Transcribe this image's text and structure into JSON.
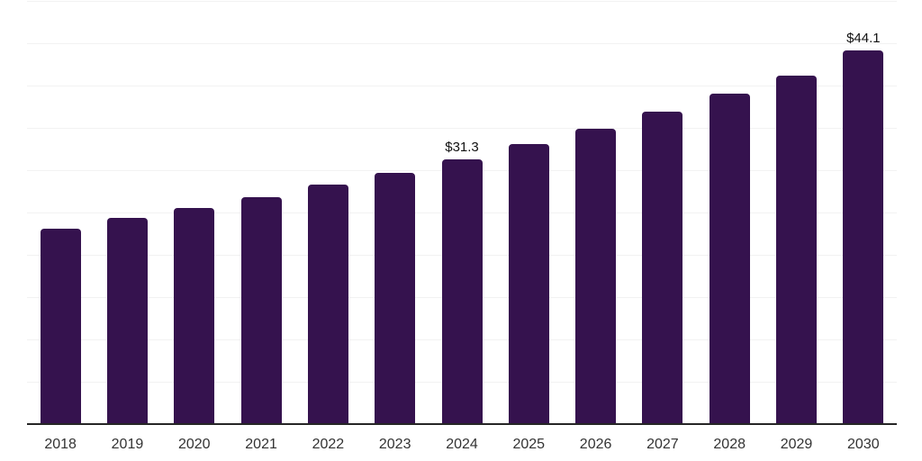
{
  "chart_data": {
    "type": "bar",
    "title": "",
    "xlabel": "",
    "ylabel": "",
    "categories": [
      "2018",
      "2019",
      "2020",
      "2021",
      "2022",
      "2023",
      "2024",
      "2025",
      "2026",
      "2027",
      "2028",
      "2029",
      "2030"
    ],
    "values": [
      23.1,
      24.4,
      25.5,
      26.8,
      28.3,
      29.7,
      31.3,
      33.1,
      34.9,
      36.9,
      39.0,
      41.2,
      44.1
    ],
    "data_labels": {
      "2024": "$31.3",
      "2030": "$44.1"
    },
    "ylim": [
      0,
      50
    ],
    "ytick_step": 5,
    "y_axis_labels_visible": false,
    "grid": "horizontal",
    "legend": "none",
    "colors": {
      "bar": "#35124E",
      "gridline": "#F2F2F2",
      "axis_line": "#262626",
      "tick_label": "#333333",
      "data_label": "#111111",
      "background": "#FFFFFF"
    }
  }
}
